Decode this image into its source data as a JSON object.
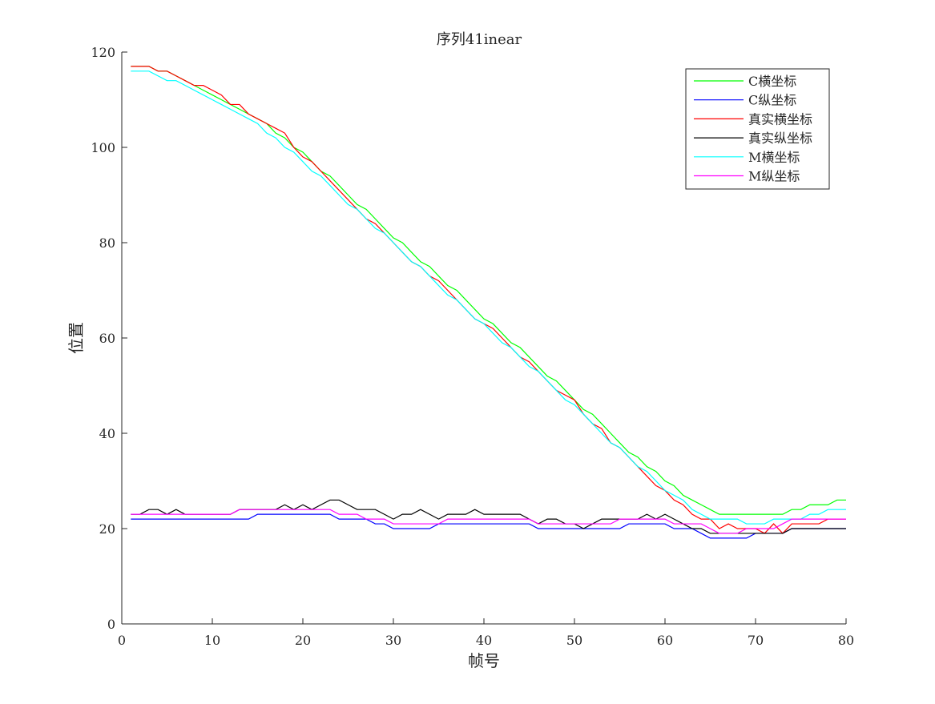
{
  "chart_data": {
    "type": "line",
    "title": "序列41inear",
    "xlabel": "帧号",
    "ylabel": "位置",
    "xlim": [
      0,
      80
    ],
    "ylim": [
      0,
      120
    ],
    "xticks": [
      0,
      10,
      20,
      30,
      40,
      50,
      60,
      70,
      80
    ],
    "yticks": [
      0,
      20,
      40,
      60,
      80,
      100,
      120
    ],
    "grid": false,
    "legend_position": "top-right",
    "x": [
      1,
      2,
      3,
      4,
      5,
      6,
      7,
      8,
      9,
      10,
      11,
      12,
      13,
      14,
      15,
      16,
      17,
      18,
      19,
      20,
      21,
      22,
      23,
      24,
      25,
      26,
      27,
      28,
      29,
      30,
      31,
      32,
      33,
      34,
      35,
      36,
      37,
      38,
      39,
      40,
      41,
      42,
      43,
      44,
      45,
      46,
      47,
      48,
      49,
      50,
      51,
      52,
      53,
      54,
      55,
      56,
      57,
      58,
      59,
      60,
      61,
      62,
      63,
      64,
      65,
      66,
      67,
      68,
      69,
      70,
      71,
      72,
      73,
      74,
      75,
      76,
      77,
      78,
      79,
      80
    ],
    "series": [
      {
        "name": "C横坐标",
        "color": "#00ff00",
        "values": [
          117,
          117,
          117,
          116,
          116,
          115,
          114,
          113,
          112,
          111,
          110,
          109,
          108,
          107,
          106,
          105,
          103,
          102,
          100,
          99,
          97,
          95,
          94,
          92,
          90,
          88,
          87,
          85,
          83,
          81,
          80,
          78,
          76,
          75,
          73,
          71,
          70,
          68,
          66,
          64,
          63,
          61,
          59,
          58,
          56,
          54,
          52,
          51,
          49,
          47,
          45,
          44,
          42,
          40,
          38,
          36,
          35,
          33,
          32,
          30,
          29,
          27,
          26,
          25,
          24,
          23,
          23,
          23,
          23,
          23,
          23,
          23,
          23,
          24,
          24,
          25,
          25,
          25,
          26,
          26
        ]
      },
      {
        "name": "C纵坐标",
        "color": "#0000ff",
        "values": [
          22,
          22,
          22,
          22,
          22,
          22,
          22,
          22,
          22,
          22,
          22,
          22,
          22,
          22,
          23,
          23,
          23,
          23,
          23,
          23,
          23,
          23,
          23,
          22,
          22,
          22,
          22,
          21,
          21,
          20,
          20,
          20,
          20,
          20,
          21,
          21,
          21,
          21,
          21,
          21,
          21,
          21,
          21,
          21,
          21,
          20,
          20,
          20,
          20,
          20,
          20,
          20,
          20,
          20,
          20,
          21,
          21,
          21,
          21,
          21,
          20,
          20,
          20,
          19,
          18,
          18,
          18,
          18,
          18,
          19,
          19,
          19,
          19,
          20,
          20,
          20,
          20,
          20,
          20,
          20
        ]
      },
      {
        "name": "真实横坐标",
        "color": "#ff0000",
        "values": [
          117,
          117,
          117,
          116,
          116,
          115,
          114,
          113,
          113,
          112,
          111,
          109,
          109,
          107,
          106,
          105,
          104,
          103,
          100,
          98,
          97,
          95,
          93,
          91,
          89,
          87,
          85,
          84,
          82,
          80,
          78,
          76,
          75,
          73,
          72,
          70,
          68,
          66,
          64,
          63,
          62,
          60,
          58,
          56,
          55,
          53,
          51,
          49,
          48,
          47,
          44,
          42,
          41,
          38,
          37,
          35,
          33,
          31,
          29,
          28,
          26,
          25,
          23,
          22,
          22,
          20,
          21,
          20,
          20,
          20,
          19,
          21,
          19,
          21,
          21,
          21,
          21,
          22,
          22,
          22
        ]
      },
      {
        "name": "真实纵坐标",
        "color": "#000000",
        "values": [
          23,
          23,
          24,
          24,
          23,
          24,
          23,
          23,
          23,
          23,
          23,
          23,
          24,
          24,
          24,
          24,
          24,
          25,
          24,
          25,
          24,
          25,
          26,
          26,
          25,
          24,
          24,
          24,
          23,
          22,
          23,
          23,
          24,
          23,
          22,
          23,
          23,
          23,
          24,
          23,
          23,
          23,
          23,
          23,
          22,
          21,
          22,
          22,
          21,
          21,
          20,
          21,
          22,
          22,
          22,
          22,
          22,
          23,
          22,
          23,
          22,
          21,
          20,
          20,
          19,
          19,
          19,
          19,
          19,
          19,
          19,
          19,
          19,
          20,
          20,
          20,
          20,
          20,
          20,
          20
        ]
      },
      {
        "name": "M横坐标",
        "color": "#00ffff",
        "values": [
          116,
          116,
          116,
          115,
          114,
          114,
          113,
          112,
          111,
          110,
          109,
          108,
          107,
          106,
          105,
          103,
          102,
          100,
          99,
          97,
          95,
          94,
          92,
          90,
          88,
          87,
          85,
          83,
          82,
          80,
          78,
          76,
          75,
          73,
          71,
          69,
          68,
          66,
          64,
          63,
          61,
          59,
          58,
          56,
          54,
          53,
          51,
          49,
          47,
          46,
          44,
          42,
          40,
          38,
          37,
          35,
          33,
          32,
          30,
          28,
          27,
          26,
          24,
          23,
          22,
          22,
          22,
          22,
          21,
          21,
          21,
          22,
          22,
          22,
          22,
          23,
          23,
          24,
          24,
          24
        ]
      },
      {
        "name": "M纵坐标",
        "color": "#ff00ff",
        "values": [
          23,
          23,
          23,
          23,
          23,
          23,
          23,
          23,
          23,
          23,
          23,
          23,
          24,
          24,
          24,
          24,
          24,
          24,
          24,
          24,
          24,
          24,
          24,
          23,
          23,
          23,
          22,
          22,
          22,
          21,
          21,
          21,
          21,
          21,
          21,
          22,
          22,
          22,
          22,
          22,
          22,
          22,
          22,
          22,
          22,
          21,
          21,
          21,
          21,
          21,
          21,
          21,
          21,
          21,
          22,
          22,
          22,
          22,
          22,
          22,
          21,
          21,
          21,
          21,
          20,
          19,
          19,
          19,
          20,
          20,
          20,
          20,
          21,
          22,
          22,
          22,
          22,
          22,
          22,
          22
        ]
      }
    ]
  }
}
